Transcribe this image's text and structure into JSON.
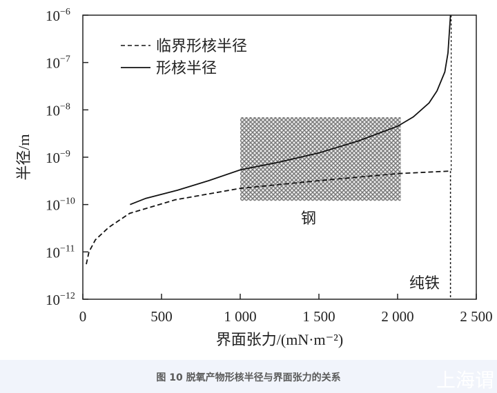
{
  "chart_data": {
    "type": "line",
    "xlabel": "界面张力/(mN·m⁻²)",
    "ylabel": "半径/m",
    "xlim": [
      0,
      2500
    ],
    "ylim": [
      1e-12,
      1e-06
    ],
    "yscale": "log",
    "grid": false,
    "legend_placement": "top-left",
    "x_ticks": [
      0,
      500,
      1000,
      1500,
      2000,
      2500
    ],
    "x_tick_labels": [
      "0",
      "500",
      "1 000",
      "1 500",
      "2 000",
      "2 500"
    ],
    "y_ticks": [
      1e-12,
      1e-11,
      1e-10,
      1e-09,
      1e-08,
      1e-07,
      1e-06
    ],
    "y_tick_exponents": [
      "-12",
      "-11",
      "-10",
      "-9",
      "-8",
      "-7",
      "-6"
    ],
    "series": [
      {
        "name": "临界形核半径",
        "style": "dashed",
        "x": [
          22,
          39,
          80,
          165,
          297,
          587,
          1000,
          1500,
          2000,
          2336
        ],
        "y": [
          5.5e-12,
          1e-11,
          1.8e-11,
          3.3e-11,
          6.5e-11,
          1.26e-10,
          2.2e-10,
          3.2e-10,
          4.5e-10,
          5.1e-10
        ]
      },
      {
        "name": "形核半径",
        "style": "solid",
        "x": [
          300,
          400,
          600,
          800,
          1000,
          1250,
          1500,
          1750,
          2000,
          2100,
          2200,
          2250,
          2300,
          2320,
          2336
        ],
        "y": [
          1e-10,
          1.35e-10,
          2e-10,
          3.2e-10,
          5.4e-10,
          7.9e-10,
          1.23e-09,
          2.2e-09,
          4.5e-09,
          7.1e-09,
          1.4e-08,
          2.5e-08,
          6.3e-08,
          1.6e-07,
          1e-06
        ]
      }
    ],
    "annotations": [
      {
        "label": "钢",
        "type": "hatched-region",
        "x_range": [
          1000,
          2020
        ],
        "y_range": [
          1.2e-10,
          7e-09
        ]
      },
      {
        "label": "纯铁",
        "type": "vertical-dotted-line",
        "x": 2336
      }
    ],
    "colors": {
      "line": "#111111",
      "hatch": "#777777"
    }
  },
  "caption": "图 10 脱氧产物形核半径与界面张力的关系",
  "watermark": "上海谓"
}
